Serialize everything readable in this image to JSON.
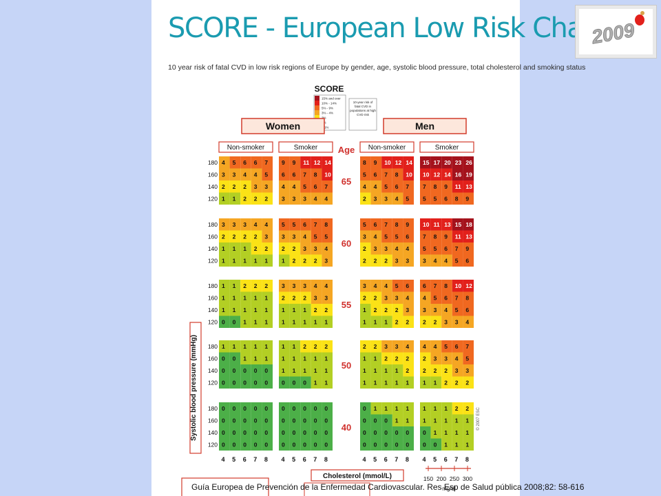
{
  "title": "SCORE - European Low Risk Chart",
  "subtitle": "10 year risk of fatal CVD in low risk regions of Europe by gender, age, systolic blood pressure, total cholesterol and smoking status",
  "logo": {
    "wordmark": "SCORE",
    "legend_items": [
      "15% and over",
      "10% - 14%",
      "5% - 9%",
      "3% - 4%",
      "2%",
      "1%",
      "< 1%"
    ],
    "legend_colors": [
      "#a4121c",
      "#e2201b",
      "#f06820",
      "#f5a623",
      "#fbe216",
      "#b3cf24",
      "#4caf48"
    ],
    "note": "10-year risk of fatal CVD in populations at high CVD risk"
  },
  "corner_badge": "2009",
  "footer": "Guía Europea de Prevención de la Enfermedad Cardiovascular. Res Esp de Salud pública 2008;82: 58-616",
  "chart_data": {
    "type": "heatmap",
    "gender_labels": [
      "Women",
      "Men"
    ],
    "smoking_labels": [
      "Non-smoker",
      "Smoker"
    ],
    "age_header": "Age",
    "ylabel": "Systolic blood pressure (mmHg)",
    "xlabel": "Cholesterol (mmol/L)",
    "copyright": "© 2007 ESC",
    "sbp_rows": [
      "180",
      "160",
      "140",
      "120"
    ],
    "cholesterol_cols": [
      "4",
      "5",
      "6",
      "7",
      "8"
    ],
    "mg_scale": [
      "150",
      "200",
      "250",
      "300"
    ],
    "mg_unit": "mg/dl",
    "ages": [
      "65",
      "60",
      "55",
      "50",
      "40"
    ],
    "values": {
      "women_non_smoker": [
        [
          [
            4,
            5,
            6,
            6,
            7
          ],
          [
            3,
            3,
            4,
            4,
            5
          ],
          [
            2,
            2,
            2,
            3,
            3
          ],
          [
            1,
            1,
            2,
            2,
            2
          ]
        ],
        [
          [
            3,
            3,
            3,
            4,
            4
          ],
          [
            2,
            2,
            2,
            2,
            3
          ],
          [
            1,
            1,
            1,
            2,
            2
          ],
          [
            1,
            1,
            1,
            1,
            1
          ]
        ],
        [
          [
            1,
            1,
            2,
            2,
            2
          ],
          [
            1,
            1,
            1,
            1,
            1
          ],
          [
            1,
            1,
            1,
            1,
            1
          ],
          [
            0,
            0,
            1,
            1,
            1
          ]
        ],
        [
          [
            1,
            1,
            1,
            1,
            1
          ],
          [
            0,
            0,
            1,
            1,
            1
          ],
          [
            0,
            0,
            0,
            0,
            0
          ],
          [
            0,
            0,
            0,
            0,
            0
          ]
        ],
        [
          [
            0,
            0,
            0,
            0,
            0
          ],
          [
            0,
            0,
            0,
            0,
            0
          ],
          [
            0,
            0,
            0,
            0,
            0
          ],
          [
            0,
            0,
            0,
            0,
            0
          ]
        ]
      ],
      "women_smoker": [
        [
          [
            9,
            9,
            11,
            12,
            14
          ],
          [
            6,
            6,
            7,
            8,
            10
          ],
          [
            4,
            4,
            5,
            6,
            7
          ],
          [
            3,
            3,
            3,
            4,
            4
          ]
        ],
        [
          [
            5,
            5,
            6,
            7,
            8
          ],
          [
            3,
            3,
            4,
            5,
            5
          ],
          [
            2,
            2,
            3,
            3,
            4
          ],
          [
            1,
            2,
            2,
            2,
            3
          ]
        ],
        [
          [
            3,
            3,
            3,
            4,
            4
          ],
          [
            2,
            2,
            2,
            3,
            3
          ],
          [
            1,
            1,
            1,
            2,
            2
          ],
          [
            1,
            1,
            1,
            1,
            1
          ]
        ],
        [
          [
            1,
            1,
            2,
            2,
            2
          ],
          [
            1,
            1,
            1,
            1,
            1
          ],
          [
            1,
            1,
            1,
            1,
            1
          ],
          [
            0,
            0,
            0,
            1,
            1
          ]
        ],
        [
          [
            0,
            0,
            0,
            0,
            0
          ],
          [
            0,
            0,
            0,
            0,
            0
          ],
          [
            0,
            0,
            0,
            0,
            0
          ],
          [
            0,
            0,
            0,
            0,
            0
          ]
        ]
      ],
      "men_non_smoker": [
        [
          [
            8,
            9,
            10,
            12,
            14
          ],
          [
            5,
            6,
            7,
            8,
            10
          ],
          [
            4,
            4,
            5,
            6,
            7
          ],
          [
            2,
            3,
            3,
            4,
            5
          ]
        ],
        [
          [
            5,
            6,
            7,
            8,
            9
          ],
          [
            3,
            4,
            5,
            5,
            6
          ],
          [
            2,
            3,
            3,
            4,
            4
          ],
          [
            2,
            2,
            2,
            3,
            3
          ]
        ],
        [
          [
            3,
            4,
            4,
            5,
            6
          ],
          [
            2,
            2,
            3,
            3,
            4
          ],
          [
            1,
            2,
            2,
            2,
            3
          ],
          [
            1,
            1,
            1,
            2,
            2
          ]
        ],
        [
          [
            2,
            2,
            3,
            3,
            4
          ],
          [
            1,
            1,
            2,
            2,
            2
          ],
          [
            1,
            1,
            1,
            1,
            2
          ],
          [
            1,
            1,
            1,
            1,
            1
          ]
        ],
        [
          [
            0,
            1,
            1,
            1,
            1
          ],
          [
            0,
            0,
            0,
            1,
            1
          ],
          [
            0,
            0,
            0,
            0,
            0
          ],
          [
            0,
            0,
            0,
            0,
            0
          ]
        ]
      ],
      "men_smoker": [
        [
          [
            15,
            17,
            20,
            23,
            26
          ],
          [
            10,
            12,
            14,
            16,
            19
          ],
          [
            7,
            8,
            9,
            11,
            13
          ],
          [
            5,
            5,
            6,
            8,
            9
          ]
        ],
        [
          [
            10,
            11,
            13,
            15,
            18
          ],
          [
            7,
            8,
            9,
            11,
            13
          ],
          [
            5,
            5,
            6,
            7,
            9
          ],
          [
            3,
            4,
            4,
            5,
            6
          ]
        ],
        [
          [
            6,
            7,
            8,
            10,
            12
          ],
          [
            4,
            5,
            6,
            7,
            8
          ],
          [
            3,
            3,
            4,
            5,
            6
          ],
          [
            2,
            2,
            3,
            3,
            4
          ]
        ],
        [
          [
            4,
            4,
            5,
            6,
            7
          ],
          [
            2,
            3,
            3,
            4,
            5
          ],
          [
            2,
            2,
            2,
            3,
            3
          ],
          [
            1,
            1,
            2,
            2,
            2
          ]
        ],
        [
          [
            1,
            1,
            1,
            2,
            2
          ],
          [
            1,
            1,
            1,
            1,
            1
          ],
          [
            0,
            1,
            1,
            1,
            1
          ],
          [
            0,
            0,
            1,
            1,
            1
          ]
        ]
      ]
    }
  }
}
